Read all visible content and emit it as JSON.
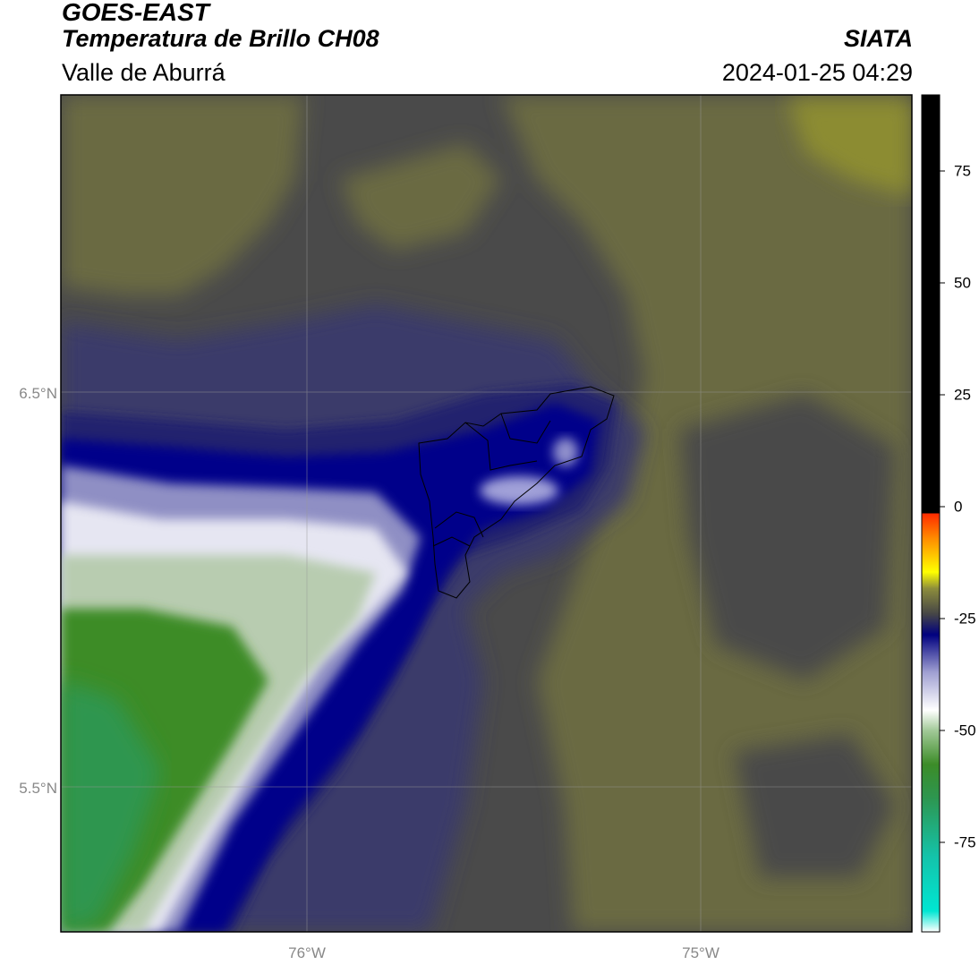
{
  "header": {
    "satellite": "GOES-EAST",
    "product": "Temperatura de Brillo CH08",
    "region": "Valle de Aburrá",
    "agency": "SIATA",
    "timestamp": "2024-01-25 04:29"
  },
  "map": {
    "lat_ticks": [
      {
        "label": "6.5°N",
        "value": 6.5
      },
      {
        "label": "5.5°N",
        "value": 5.5
      }
    ],
    "lon_ticks": [
      {
        "label": "76°W",
        "value": -76.0
      },
      {
        "label": "75°W",
        "value": -75.0
      }
    ],
    "gridlines": true
  },
  "colorbar": {
    "range": [
      -95,
      92
    ],
    "ticks": [
      {
        "label": "75",
        "value": 75
      },
      {
        "label": "50",
        "value": 50
      },
      {
        "label": "25",
        "value": 25
      },
      {
        "label": "0",
        "value": 0
      },
      {
        "label": "-25",
        "value": -25
      },
      {
        "label": "-50",
        "value": -50
      },
      {
        "label": "-75",
        "value": -75
      }
    ],
    "colors": {
      "black": "#000000",
      "red": "#ff2a00",
      "orange": "#ff8c00",
      "yellow": "#ffff00",
      "olive": "#8c8c3c",
      "gray": "#464646",
      "navy": "#00007f",
      "lavender": "#b4b4dc",
      "white": "#ffffff",
      "green": "#3c8c28",
      "teal": "#00e6d2"
    }
  }
}
